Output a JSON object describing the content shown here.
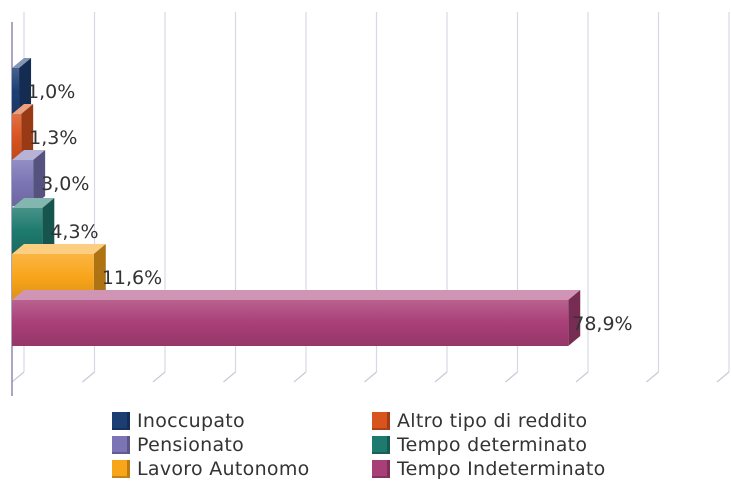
{
  "chart_data": {
    "type": "bar",
    "orientation": "horizontal",
    "three_d": true,
    "categories": [
      "Inoccupato",
      "Altro tipo di reddito",
      "Pensionato",
      "Tempo determinato",
      "Lavoro Autonomo",
      "Tempo Indeterminato"
    ],
    "values": [
      1.0,
      1.3,
      3.0,
      4.3,
      11.6,
      78.9
    ],
    "data_labels": [
      "1,0%",
      "1,3%",
      "3,0%",
      "4,3%",
      "11,6%",
      "78,9%"
    ],
    "colors": [
      "#1c3f73",
      "#d9531e",
      "#7b75b5",
      "#1e7a6e",
      "#f9a51a",
      "#a93f77"
    ],
    "unit": "%",
    "xlim": [
      0,
      100
    ],
    "grid": true,
    "legend_position": "bottom",
    "title": "",
    "xlabel": "",
    "ylabel": ""
  },
  "legend": {
    "items": [
      {
        "label": "Inoccupato",
        "color": "#1c3f73"
      },
      {
        "label": "Altro tipo di reddito",
        "color": "#d9531e"
      },
      {
        "label": "Pensionato",
        "color": "#7b75b5"
      },
      {
        "label": "Tempo determinato",
        "color": "#1e7a6e"
      },
      {
        "label": "Lavoro Autonomo",
        "color": "#f9a51a"
      },
      {
        "label": "Tempo Indeterminato",
        "color": "#a93f77"
      }
    ]
  }
}
